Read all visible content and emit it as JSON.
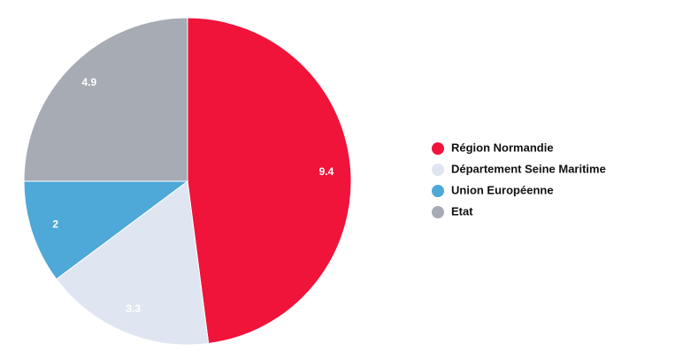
{
  "chart_data": {
    "type": "pie",
    "categories": [
      "Région Normandie",
      "Département Seine Maritime",
      "Union Européenne",
      "Etat"
    ],
    "values": [
      9.4,
      3.3,
      2,
      4.9
    ],
    "colors": [
      "#f0133a",
      "#dfe6f1",
      "#4ea8d8",
      "#a7abb4"
    ],
    "legend": "right"
  }
}
